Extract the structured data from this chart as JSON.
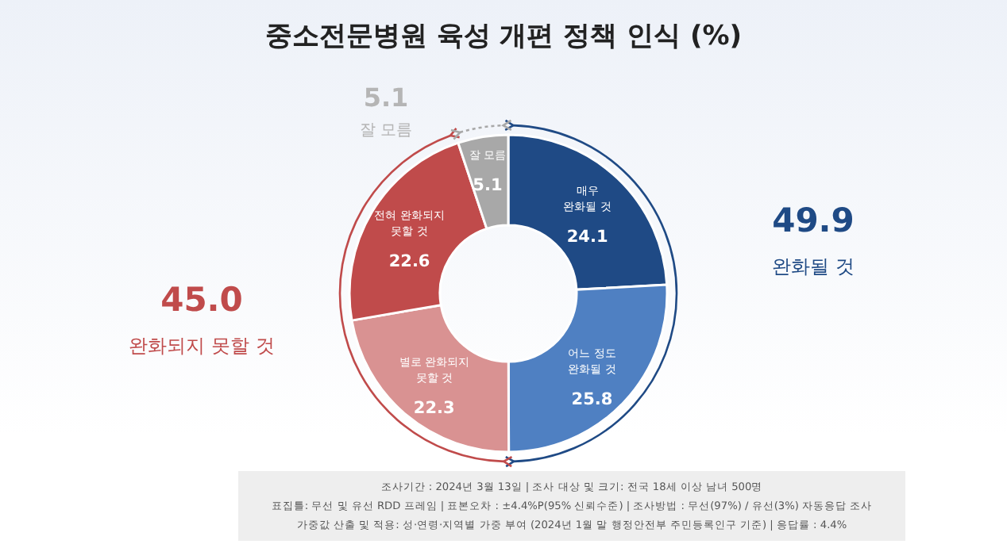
{
  "chart_data": {
    "type": "donut",
    "title": "중소전문병원 육성 개편 정책 인식 (%)",
    "categories": [
      "매우 완화될 것",
      "어느 정도 완화될 것",
      "별로 완화되지 못할 것",
      "전혀 완화되지 못할 것",
      "잘 모름"
    ],
    "values": [
      24.1,
      25.8,
      22.3,
      22.6,
      5.1
    ],
    "colors": [
      "#1f4a85",
      "#4f80c2",
      "#d99292",
      "#c04b4b",
      "#a8a8a8"
    ],
    "data_labels": true,
    "annotations": [
      "49.9",
      "완화될 것",
      "45.0",
      "완화되지 못할 것",
      "5.1",
      "잘 모름",
      "조사기간 : 2024년 3월 13일 | 조사 대상 및 크기: 전국 18세 이상 남녀 500명",
      "표집틀: 무선 및 유선 RDD 프레임 | 표본오차 : ±4.4%P(95% 신뢰수준) | 조사방법 : 무선(97%) / 유선(3%) 자동응답 조사",
      "가중값 산출 및 적용: 성·연령·지역별 가중 부여 (2024년 1월 말 행정안전부 주민등록인구 기준) | 응답률 : 4.4%"
    ]
  }
}
